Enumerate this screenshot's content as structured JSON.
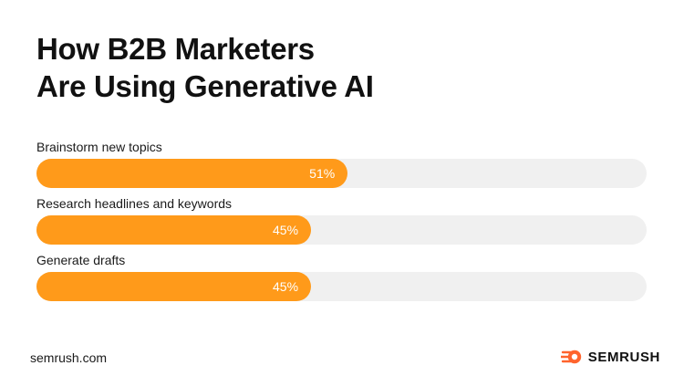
{
  "title_lines": [
    "How B2B Marketers",
    "Are Using Generative AI"
  ],
  "colors": {
    "bar_fill": "#ff9a1a",
    "bar_track": "#f0f0f0",
    "text": "#111111",
    "bar_value_text": "#ffffff",
    "brand_icon": "#ff642d"
  },
  "chart_data": {
    "type": "bar",
    "orientation": "horizontal",
    "categories": [
      "Brainstorm new topics",
      "Research headlines and keywords",
      "Generate drafts"
    ],
    "values": [
      51,
      45,
      45
    ],
    "value_labels": [
      "51%",
      "45%",
      "45%"
    ],
    "xlim": [
      0,
      100
    ],
    "title": "How B2B Marketers Are Using Generative AI"
  },
  "footer": {
    "site": "semrush.com",
    "brand_name": "SEMRUSH",
    "brand_icon": "semrush-fireball-icon"
  }
}
